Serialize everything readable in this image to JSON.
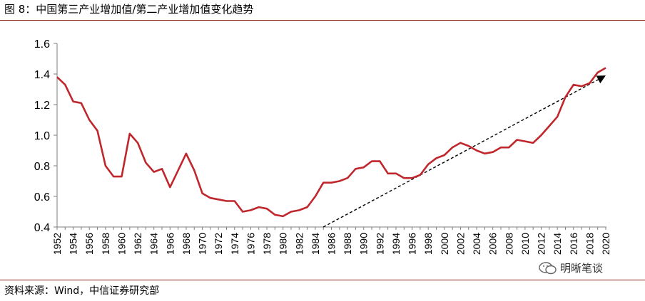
{
  "figure": {
    "title": "图 8：中国第三产业增加值/第二产业增加值变化趋势",
    "source": "资料来源：Wind，中信证券研究部",
    "watermark": "明晰笔谈"
  },
  "chart_data": {
    "type": "line",
    "title": "",
    "xlabel": "",
    "ylabel": "",
    "ylim": [
      0.4,
      1.6
    ],
    "yticks": [
      "0.4",
      "0.6",
      "0.8",
      "1.0",
      "1.2",
      "1.4",
      "1.6"
    ],
    "xticks": [
      "1952",
      "1954",
      "1956",
      "1958",
      "1960",
      "1962",
      "1964",
      "1966",
      "1968",
      "1970",
      "1972",
      "1974",
      "1976",
      "1978",
      "1980",
      "1982",
      "1984",
      "1986",
      "1988",
      "1990",
      "1992",
      "1994",
      "1996",
      "1998",
      "2000",
      "2002",
      "2004",
      "2006",
      "2008",
      "2010",
      "2012",
      "2014",
      "2016",
      "2018",
      "2020"
    ],
    "grid": false,
    "legend": "none",
    "line_color": "#c0272d",
    "series": [
      {
        "x": [
          1952,
          1953,
          1954,
          1955,
          1956,
          1957,
          1958,
          1959,
          1960,
          1961,
          1962,
          1963,
          1964,
          1965,
          1966,
          1967,
          1968,
          1969,
          1970,
          1971,
          1972,
          1973,
          1974,
          1975,
          1976,
          1977,
          1978,
          1979,
          1980,
          1981,
          1982,
          1983,
          1984,
          1985,
          1986,
          1987,
          1988,
          1989,
          1990,
          1991,
          1992,
          1993,
          1994,
          1995,
          1996,
          1997,
          1998,
          1999,
          2000,
          2001,
          2002,
          2003,
          2004,
          2005,
          2006,
          2007,
          2008,
          2009,
          2010,
          2011,
          2012,
          2013,
          2014,
          2015,
          2016,
          2017,
          2018,
          2019,
          2020
        ],
        "values": [
          1.38,
          1.33,
          1.22,
          1.21,
          1.1,
          1.03,
          0.8,
          0.73,
          0.73,
          1.01,
          0.95,
          0.82,
          0.76,
          0.78,
          0.66,
          0.77,
          0.88,
          0.77,
          0.62,
          0.59,
          0.58,
          0.57,
          0.57,
          0.5,
          0.51,
          0.53,
          0.52,
          0.48,
          0.47,
          0.5,
          0.51,
          0.53,
          0.6,
          0.69,
          0.69,
          0.7,
          0.72,
          0.78,
          0.79,
          0.83,
          0.83,
          0.75,
          0.75,
          0.72,
          0.72,
          0.74,
          0.81,
          0.85,
          0.87,
          0.92,
          0.95,
          0.93,
          0.9,
          0.88,
          0.89,
          0.92,
          0.92,
          0.97,
          0.96,
          0.95,
          1.0,
          1.06,
          1.12,
          1.25,
          1.33,
          1.32,
          1.34,
          1.41,
          1.44
        ]
      }
    ],
    "trend_arrow": {
      "style": "dashed",
      "color": "#000000",
      "x": [
        1985,
        2020
      ],
      "y": [
        0.4,
        1.39
      ]
    }
  }
}
